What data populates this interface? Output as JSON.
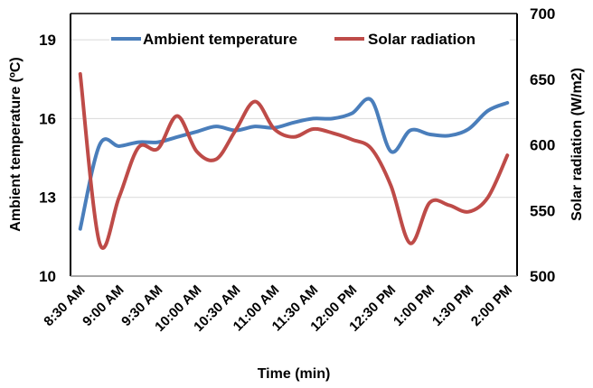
{
  "chart_data": {
    "type": "line",
    "title": "",
    "xlabel": "Time (min)",
    "ylabel": "Ambient temperature (ºC)",
    "y2label": "Solar radiation (W/m2)",
    "ylim": [
      10,
      20
    ],
    "y2lim": [
      500,
      700
    ],
    "yticks": [
      "10",
      "13",
      "16",
      "19"
    ],
    "y2ticks": [
      "500",
      "550",
      "600",
      "650",
      "700"
    ],
    "grid": true,
    "legend_position": "top",
    "x": [
      "8:30 AM",
      "8:45 AM",
      "9:00 AM",
      "9:15 AM",
      "9:30 AM",
      "9:45 AM",
      "10:00 AM",
      "10:15 AM",
      "10:30 AM",
      "10:45 AM",
      "11:00 AM",
      "11:15 AM",
      "11:30 AM",
      "11:45 AM",
      "12:00 PM",
      "12:15 PM",
      "12:30 PM",
      "12:45 PM",
      "1:00 PM",
      "1:15 PM",
      "1:30 PM",
      "1:45 PM",
      "2:00 PM"
    ],
    "xtick_labels": [
      "8:30 AM",
      "9:00 AM",
      "9:30 AM",
      "10:00 AM",
      "10:30 AM",
      "11:00 AM",
      "11:30 AM",
      "12:00 PM",
      "12:30 PM",
      "1:00 PM",
      "1:30 PM",
      "2:00 PM"
    ],
    "series": [
      {
        "name": "Ambient temperature",
        "axis": "left",
        "color": "#4a7ebb",
        "values": [
          11.8,
          15.0,
          14.95,
          15.1,
          15.1,
          15.3,
          15.5,
          15.7,
          15.55,
          15.7,
          15.65,
          15.85,
          16.0,
          16.0,
          16.2,
          16.7,
          14.75,
          15.55,
          15.4,
          15.35,
          15.6,
          16.3,
          16.6
        ]
      },
      {
        "name": "Solar radiation",
        "axis": "right",
        "color": "#be4b48",
        "values": [
          654,
          525,
          560,
          598,
          597,
          622,
          595,
          589,
          611,
          633,
          612,
          606,
          612,
          609,
          604,
          597,
          569,
          525,
          556,
          554,
          549,
          560,
          592
        ]
      }
    ]
  }
}
